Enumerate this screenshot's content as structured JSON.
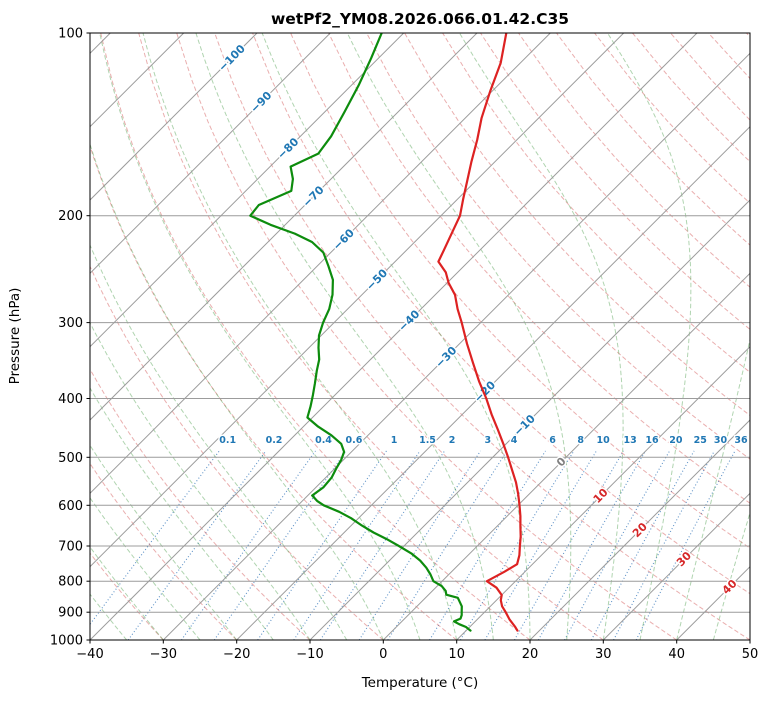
{
  "chart_data": {
    "type": "skewt",
    "title": "wetPf2_YM08.2026.066.01.42.C35",
    "xlabel": "Temperature (°C)",
    "ylabel": "Pressure (hPa)",
    "xlim": [
      -40,
      50
    ],
    "p_top": 100,
    "p_bot": 1000,
    "skew_deg": 45,
    "x_ticks": [
      -40,
      -30,
      -20,
      -10,
      0,
      10,
      20,
      30,
      40,
      50
    ],
    "y_ticks": [
      100,
      200,
      300,
      400,
      500,
      600,
      700,
      800,
      900,
      1000
    ],
    "isotherms": {
      "start": -120,
      "end": 50,
      "step": 10
    },
    "dry_adiabats": {
      "start": -40,
      "end": 200,
      "step": 10
    },
    "moist_adiabats": {
      "start": -40,
      "end": 45,
      "step": 5
    },
    "mixing_ratios": [
      0.1,
      0.2,
      0.4,
      0.6,
      1,
      1.5,
      2,
      3,
      4,
      6,
      8,
      10,
      13,
      16,
      20,
      25,
      30,
      36
    ],
    "mixing_label_pressure": 468,
    "mixing_top_pressure": 488,
    "isotherm_labels": [
      {
        "t": -100,
        "p": 110
      },
      {
        "t": -90,
        "p": 130
      },
      {
        "t": -80,
        "p": 155
      },
      {
        "t": -70,
        "p": 186
      },
      {
        "t": -60,
        "p": 219
      },
      {
        "t": -50,
        "p": 255
      },
      {
        "t": -40,
        "p": 298
      },
      {
        "t": -30,
        "p": 342
      },
      {
        "t": -20,
        "p": 390
      },
      {
        "t": -10,
        "p": 443
      },
      {
        "t": 0,
        "p": 509
      },
      {
        "t": 10,
        "p": 579
      },
      {
        "t": 20,
        "p": 659
      },
      {
        "t": 30,
        "p": 736
      },
      {
        "t": 40,
        "p": 818
      }
    ],
    "temperature_profile": [
      [
        100,
        -66
      ],
      [
        112,
        -62.7
      ],
      [
        125,
        -60.2
      ],
      [
        138,
        -57.8
      ],
      [
        150,
        -55.4
      ],
      [
        163,
        -53.2
      ],
      [
        175,
        -51.2
      ],
      [
        188,
        -49.2
      ],
      [
        200,
        -47.4
      ],
      [
        213,
        -46.2
      ],
      [
        228,
        -44.9
      ],
      [
        238,
        -44.1
      ],
      [
        248,
        -41.6
      ],
      [
        258,
        -39.8
      ],
      [
        270,
        -37.3
      ],
      [
        285,
        -35
      ],
      [
        300,
        -32.6
      ],
      [
        325,
        -29
      ],
      [
        350,
        -25.5
      ],
      [
        375,
        -22.2
      ],
      [
        400,
        -18.9
      ],
      [
        425,
        -16
      ],
      [
        450,
        -13.1
      ],
      [
        475,
        -10.4
      ],
      [
        500,
        -7.9
      ],
      [
        525,
        -5.6
      ],
      [
        550,
        -3.4
      ],
      [
        575,
        -1.5
      ],
      [
        600,
        0.2
      ],
      [
        625,
        1.8
      ],
      [
        650,
        3.2
      ],
      [
        675,
        4.6
      ],
      [
        700,
        5.8
      ],
      [
        725,
        7
      ],
      [
        750,
        7.9
      ],
      [
        772,
        7.2
      ],
      [
        800,
        6.1
      ],
      [
        820,
        8.3
      ],
      [
        843,
        10
      ],
      [
        860,
        10.6
      ],
      [
        880,
        11.6
      ],
      [
        900,
        12.9
      ],
      [
        925,
        14.4
      ],
      [
        950,
        16.1
      ],
      [
        965,
        17
      ]
    ],
    "dewpoint_profile": [
      [
        100,
        -83
      ],
      [
        110,
        -81
      ],
      [
        122,
        -79
      ],
      [
        135,
        -77.3
      ],
      [
        148,
        -75.8
      ],
      [
        158,
        -75.2
      ],
      [
        166,
        -77.2
      ],
      [
        174,
        -75.2
      ],
      [
        182,
        -73.8
      ],
      [
        192,
        -76.3
      ],
      [
        200,
        -76
      ],
      [
        207,
        -72
      ],
      [
        214,
        -67.5
      ],
      [
        221,
        -64
      ],
      [
        230,
        -61
      ],
      [
        242,
        -58.5
      ],
      [
        255,
        -56
      ],
      [
        270,
        -54
      ],
      [
        285,
        -52.5
      ],
      [
        300,
        -51.5
      ],
      [
        315,
        -50.3
      ],
      [
        330,
        -48.7
      ],
      [
        345,
        -47
      ],
      [
        360,
        -45.8
      ],
      [
        378,
        -44.3
      ],
      [
        395,
        -43
      ],
      [
        412,
        -41.8
      ],
      [
        430,
        -40.7
      ],
      [
        445,
        -38
      ],
      [
        460,
        -35
      ],
      [
        475,
        -32.5
      ],
      [
        490,
        -31
      ],
      [
        505,
        -30.3
      ],
      [
        522,
        -29.8
      ],
      [
        540,
        -29.2
      ],
      [
        560,
        -29
      ],
      [
        578,
        -29.4
      ],
      [
        590,
        -28
      ],
      [
        600,
        -26.5
      ],
      [
        615,
        -23.5
      ],
      [
        630,
        -21
      ],
      [
        648,
        -18.5
      ],
      [
        665,
        -16
      ],
      [
        682,
        -13.3
      ],
      [
        700,
        -10.7
      ],
      [
        720,
        -8
      ],
      [
        740,
        -5.8
      ],
      [
        760,
        -4
      ],
      [
        780,
        -2.5
      ],
      [
        800,
        -1.2
      ],
      [
        815,
        0.6
      ],
      [
        830,
        1.8
      ],
      [
        842,
        2.4
      ],
      [
        852,
        4.4
      ],
      [
        865,
        5.2
      ],
      [
        880,
        6.1
      ],
      [
        895,
        6.7
      ],
      [
        910,
        7.3
      ],
      [
        922,
        7.6
      ],
      [
        932,
        7.1
      ],
      [
        942,
        8.2
      ],
      [
        952,
        9.5
      ],
      [
        965,
        10.6
      ]
    ],
    "colors": {
      "temperature": "#dd2222",
      "dewpoint": "#0d8c0d",
      "isotherm": "#9c9c9c",
      "grid": "#9c9c9c",
      "dry_adiabat": "rgba(213,96,96,0.5)",
      "moist_adiabat": "rgba(80,160,80,0.45)",
      "mixing_line": "rgba(40,110,180,0.75)",
      "label_neg": "#1f77b4",
      "label_zero": "#808080",
      "label_pos": "#d62728",
      "axis": "#000000"
    }
  }
}
